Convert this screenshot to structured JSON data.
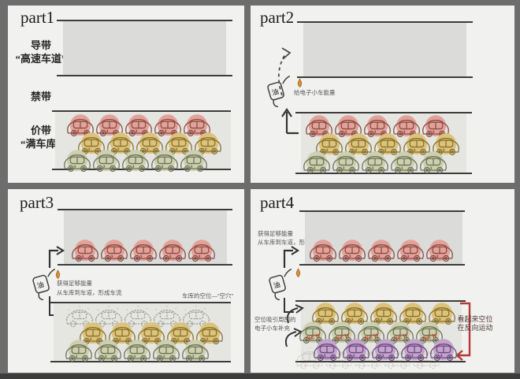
{
  "colors": {
    "red": {
      "blob": "#e2a29a",
      "line": "#8a4b43"
    },
    "yellow": {
      "blob": "#ddc379",
      "line": "#87702f"
    },
    "green": {
      "blob": "#cdd0ae",
      "line": "#6d7258"
    },
    "purple": {
      "blob": "#c4a3cf",
      "line": "#6a4a78"
    },
    "ghost": {
      "blob": "transparent",
      "line": "#8d8d7e"
    },
    "annotation_red": "#b23b35"
  },
  "icons": {
    "pump_label": "油"
  },
  "panels": [
    {
      "title": "part1",
      "band_labels": {
        "conduction": "导带",
        "conduction_nickname": "“高速车道”",
        "forbidden": "禁带",
        "valence": "价带",
        "valence_nickname": "“满车库”"
      },
      "conduction_rows": [],
      "valence_rows": [
        {
          "color": "red",
          "count": 5
        },
        {
          "color": "yellow",
          "count": 5
        },
        {
          "color": "green",
          "count": 5
        }
      ]
    },
    {
      "title": "part2",
      "pump_caption": "给电子小车能量",
      "conduction_rows": [],
      "valence_rows": [
        {
          "color": "red",
          "count": 5
        },
        {
          "color": "yellow",
          "count": 5
        },
        {
          "color": "green",
          "count": 5
        }
      ]
    },
    {
      "title": "part3",
      "pump_note_line1": "获得足够能量",
      "pump_note_line2": "从车库到车道，形成车流",
      "hole_label": "车库的空位—“空穴”",
      "conduction_rows": [
        {
          "color": "red",
          "count": 5
        }
      ],
      "valence_rows": [
        {
          "color": "ghost",
          "count": 5
        },
        {
          "color": "yellow",
          "count": 5
        },
        {
          "color": "green",
          "count": 5
        }
      ]
    },
    {
      "title": "part4",
      "pump_note_line1": "获得足够能量",
      "pump_note_line2": "从车库到车道，形成车流",
      "fill_note_line1": "空位吸引周围的",
      "fill_note_line2": "电子小车补充",
      "reverse_note_line1": "看起来空位",
      "reverse_note_line2": "在反向运动",
      "new_badge": "NEW",
      "conduction_rows": [
        {
          "color": "red",
          "count": 5
        }
      ],
      "valence_rows": [
        {
          "color": "yellow",
          "count": 5
        },
        {
          "color": "green",
          "count": 5
        },
        {
          "color": "ghost",
          "count": 5
        },
        {
          "color": "purple",
          "count": 5,
          "new_badges": true
        }
      ]
    }
  ]
}
